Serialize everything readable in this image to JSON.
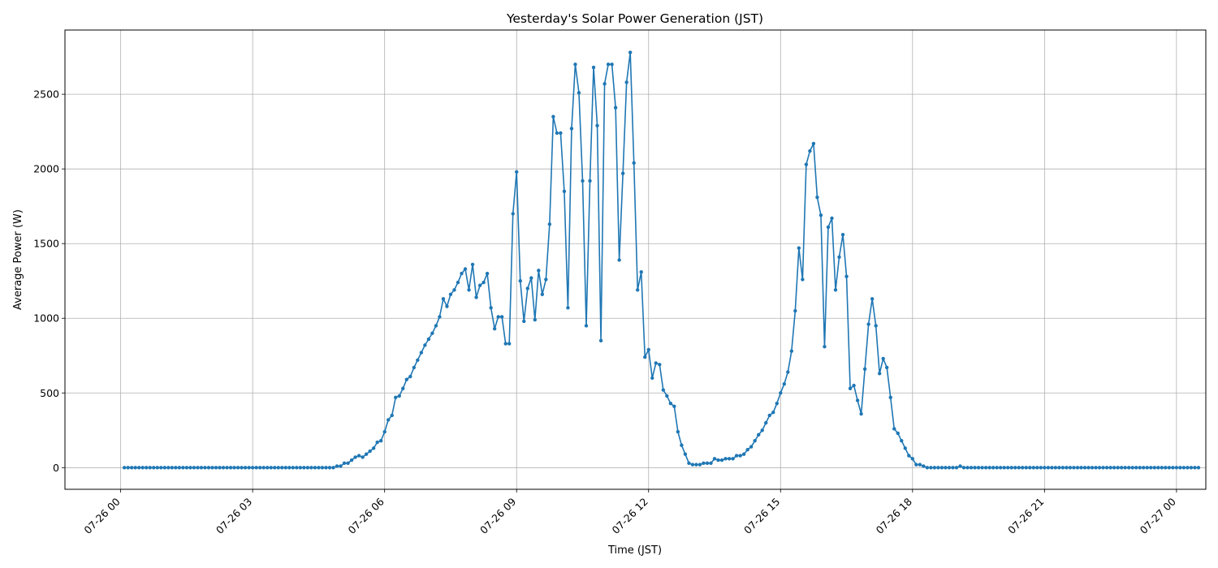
{
  "chart_data": {
    "type": "line",
    "title": "Yesterday's Solar Power Generation (JST)",
    "xlabel": "Time (JST)",
    "ylabel": "Average Power (W)",
    "x_start": "07-26 00:05",
    "x_step_minutes": 5,
    "xlim": [
      "07-25 22:44",
      "07-27 00:40"
    ],
    "ylim": [
      -145,
      2930
    ],
    "x_ticks": [
      "07-26 00",
      "07-26 03",
      "07-26 06",
      "07-26 09",
      "07-26 12",
      "07-26 15",
      "07-26 18",
      "07-26 21",
      "07-27 00"
    ],
    "y_ticks": [
      0,
      500,
      1000,
      1500,
      2000,
      2500
    ],
    "grid": true,
    "series": [
      {
        "color": "#1f77b4",
        "marker": "circle",
        "values": [
          0,
          0,
          0,
          0,
          0,
          0,
          0,
          0,
          0,
          0,
          0,
          0,
          0,
          0,
          0,
          0,
          0,
          0,
          0,
          0,
          0,
          0,
          0,
          0,
          0,
          0,
          0,
          0,
          0,
          0,
          0,
          0,
          0,
          0,
          0,
          0,
          0,
          0,
          0,
          0,
          0,
          0,
          0,
          0,
          0,
          0,
          0,
          0,
          0,
          0,
          0,
          0,
          0,
          0,
          0,
          0,
          0,
          0,
          10,
          10,
          30,
          30,
          50,
          70,
          80,
          70,
          90,
          110,
          130,
          170,
          180,
          240,
          320,
          350,
          470,
          480,
          530,
          590,
          610,
          670,
          720,
          770,
          820,
          860,
          900,
          950,
          1010,
          1130,
          1080,
          1160,
          1190,
          1240,
          1300,
          1330,
          1190,
          1360,
          1140,
          1220,
          1240,
          1300,
          1070,
          930,
          1010,
          1010,
          830,
          830,
          1700,
          1980,
          1250,
          980,
          1200,
          1270,
          990,
          1320,
          1160,
          1260,
          1630,
          2350,
          2240,
          2240,
          1850,
          1070,
          2270,
          2700,
          2510,
          1920,
          950,
          1920,
          2680,
          2290,
          850,
          2570,
          2700,
          2700,
          2410,
          1390,
          1970,
          2580,
          2780,
          2040,
          1190,
          1310,
          740,
          790,
          600,
          700,
          690,
          520,
          480,
          430,
          410,
          240,
          150,
          90,
          30,
          20,
          20,
          20,
          30,
          30,
          30,
          60,
          50,
          50,
          60,
          60,
          60,
          80,
          80,
          90,
          120,
          140,
          180,
          220,
          250,
          300,
          350,
          370,
          430,
          500,
          560,
          640,
          780,
          1050,
          1470,
          1260,
          2030,
          2120,
          2170,
          1810,
          1690,
          810,
          1610,
          1670,
          1190,
          1410,
          1560,
          1280,
          530,
          550,
          450,
          360,
          660,
          960,
          1130,
          950,
          630,
          730,
          670,
          470,
          260,
          230,
          180,
          130,
          80,
          60,
          20,
          20,
          10,
          0,
          0,
          0,
          0,
          0,
          0,
          0,
          0,
          0,
          10,
          0,
          0,
          0,
          0,
          0,
          0,
          0,
          0,
          0,
          0,
          0,
          0,
          0,
          0,
          0,
          0,
          0,
          0,
          0,
          0,
          0,
          0,
          0,
          0,
          0,
          0,
          0,
          0,
          0,
          0,
          0,
          0,
          0,
          0,
          0,
          0,
          0,
          0,
          0,
          0,
          0,
          0,
          0,
          0,
          0,
          0,
          0,
          0,
          0,
          0,
          0,
          0,
          0,
          0,
          0,
          0,
          0,
          0,
          0,
          0,
          0,
          0,
          0,
          0,
          0
        ]
      }
    ]
  }
}
